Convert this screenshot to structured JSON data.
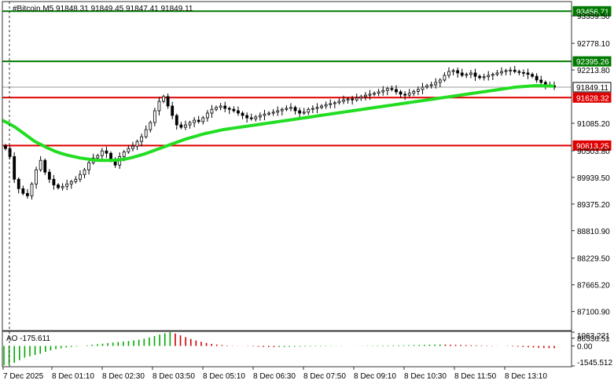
{
  "header": {
    "title": "#Bitcoin,M5  91848.31 91849.45 91847.41 91849.11"
  },
  "ao_panel": {
    "label": "AO -175.611"
  },
  "colors": {
    "background": "#ffffff",
    "candle": "#000000",
    "ma": "#22dd22",
    "support": "#e00000",
    "resistance": "#007a00",
    "ao_up": "#00aa00",
    "ao_down": "#cc0000",
    "grid": "#d0d0d0"
  },
  "chart_data": [
    {
      "type": "candlestick",
      "symbol": "#Bitcoin",
      "timeframe": "M5",
      "ylim": [
        86536.51,
        93456.71
      ],
      "y_ticks": [
        "93456.71",
        "93359.50",
        "92778.10",
        "92395.26",
        "92213.80",
        "91849.11",
        "91628.32",
        "91085.20",
        "90613.25",
        "90503.80",
        "89939.50",
        "89375.20",
        "88810.90",
        "88229.50",
        "87665.20",
        "87100.90",
        "86536.51"
      ],
      "x_ticks": [
        "7 Dec 2025",
        "8 Dec 01:10",
        "8 Dec 02:30",
        "8 Dec 03:50",
        "8 Dec 05:10",
        "8 Dec 06:30",
        "8 Dec 07:50",
        "8 Dec 09:10",
        "8 Dec 10:30",
        "8 Dec 11:50",
        "8 Dec 13:10"
      ],
      "current_price": 91849.11,
      "horizontal_levels": [
        {
          "value": 93456.71,
          "role": "resistance",
          "color": "#007a00"
        },
        {
          "value": 92395.26,
          "role": "resistance",
          "color": "#007a00"
        },
        {
          "value": 91628.32,
          "role": "support",
          "color": "#e00000"
        },
        {
          "value": 90613.25,
          "role": "support",
          "color": "#e00000"
        }
      ],
      "close": [
        90550,
        90380,
        89900,
        89700,
        89600,
        89550,
        89800,
        90100,
        90300,
        90050,
        89900,
        89780,
        89720,
        89750,
        89800,
        89850,
        89900,
        90000,
        90100,
        90250,
        90350,
        90400,
        90500,
        90450,
        90300,
        90200,
        90380,
        90480,
        90550,
        90600,
        90700,
        90800,
        90950,
        91100,
        91350,
        91550,
        91650,
        91450,
        91250,
        91050,
        91000,
        91050,
        91100,
        91150,
        91120,
        91200,
        91300,
        91380,
        91420,
        91450,
        91400,
        91380,
        91350,
        91300,
        91250,
        91200,
        91180,
        91220,
        91250,
        91280,
        91300,
        91320,
        91350,
        91380,
        91400,
        91420,
        91350,
        91300,
        91320,
        91380,
        91400,
        91420,
        91450,
        91480,
        91500,
        91520,
        91550,
        91580,
        91600,
        91580,
        91620,
        91650,
        91680,
        91700,
        91720,
        91750,
        91780,
        91820,
        91800,
        91750,
        91700,
        91680,
        91720,
        91760,
        91800,
        91850,
        91880,
        91900,
        91950,
        92000,
        92100,
        92180,
        92200,
        92150,
        92100,
        92120,
        92150,
        92080,
        92050,
        92070,
        92100,
        92120,
        92150,
        92180,
        92200,
        92210,
        92180,
        92160,
        92150,
        92120,
        92080,
        92000,
        91950,
        91900,
        91880,
        91849.11
      ],
      "ma": [
        91150,
        91080,
        91000,
        90900,
        90800,
        90700,
        90630,
        90560,
        90500,
        90450,
        90410,
        90380,
        90350,
        90330,
        90310,
        90300,
        90300,
        90300,
        90310,
        90330,
        90360,
        90400,
        90440,
        90490,
        90540,
        90590,
        90640,
        90690,
        90740,
        90780,
        90820,
        90860,
        90890,
        90920,
        90950,
        90970,
        90990,
        91010,
        91030,
        91050,
        91070,
        91090,
        91110,
        91130,
        91150,
        91170,
        91190,
        91210,
        91230,
        91250,
        91270,
        91290,
        91310,
        91330,
        91350,
        91370,
        91390,
        91410,
        91430,
        91450,
        91470,
        91490,
        91510,
        91530,
        91550,
        91570,
        91590,
        91610,
        91630,
        91650,
        91670,
        91690,
        91710,
        91730,
        91750,
        91770,
        91790,
        91810,
        91830,
        91850,
        91860,
        91870,
        91880,
        91880,
        91875,
        91870
      ]
    },
    {
      "type": "bar",
      "name": "AO",
      "ylim": [
        -1545.512,
        1063.221
      ],
      "y_ticks": [
        "1063.221",
        "0.00",
        "-1545.512"
      ],
      "values": [
        -1500,
        -1450,
        -1300,
        -1100,
        -900,
        -800,
        -700,
        -600,
        -450,
        -350,
        -250,
        -180,
        -120,
        -80,
        -40,
        10,
        50,
        90,
        130,
        170,
        220,
        260,
        300,
        340,
        380,
        430,
        480,
        560,
        650,
        760,
        880,
        980,
        1063,
        960,
        820,
        680,
        540,
        420,
        320,
        230,
        160,
        110,
        70,
        40,
        20,
        10,
        -5,
        -20,
        -40,
        -60,
        -80,
        -90,
        -95,
        -90,
        -80,
        -70,
        -60,
        -50,
        -45,
        -40,
        -35,
        -30,
        -25,
        -20,
        -15,
        -10,
        -5,
        5,
        10,
        15,
        20,
        25,
        30,
        35,
        40,
        45,
        50,
        55,
        60,
        70,
        80,
        90,
        100,
        110,
        120,
        110,
        100,
        90,
        80,
        70,
        60,
        50,
        40,
        30,
        20,
        10,
        0,
        -20,
        -40,
        -60,
        -80,
        -100,
        -120,
        -140,
        -160,
        -170,
        -175.611
      ]
    }
  ]
}
